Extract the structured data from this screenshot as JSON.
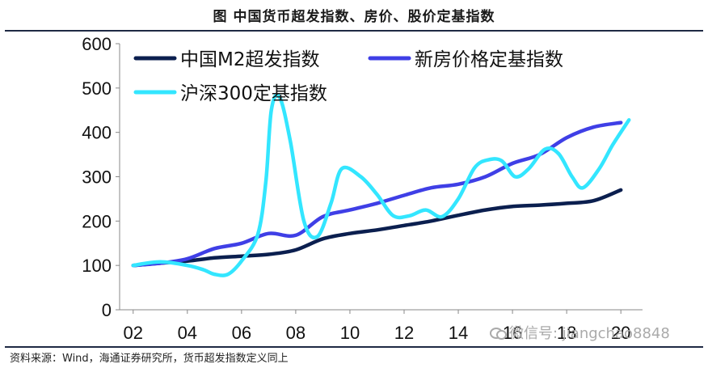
{
  "page": {
    "title": "图  中国货币超发指数、房价、股价定基指数",
    "source": "资料来源：Wind，海通证券研究所，货币超发指数定义同上",
    "watermark": "微信号: jiangchao8848"
  },
  "chart_data": {
    "type": "line",
    "x": [
      2002,
      2003,
      2004,
      2005,
      2006,
      2007,
      2008,
      2009,
      2010,
      2011,
      2012,
      2013,
      2014,
      2015,
      2016,
      2017,
      2018,
      2019,
      2020
    ],
    "x_tick_labels": [
      "02",
      "04",
      "06",
      "08",
      "10",
      "12",
      "14",
      "16",
      "18",
      "20"
    ],
    "x_tick_values": [
      2002,
      2004,
      2006,
      2008,
      2010,
      2012,
      2014,
      2016,
      2018,
      2020
    ],
    "ylim": [
      0,
      600
    ],
    "y_ticks": [
      0,
      100,
      200,
      300,
      400,
      500,
      600
    ],
    "grid": false,
    "legend_position": "top-left",
    "series": [
      {
        "name": "中国M2超发指数",
        "color": "#0b1f4f",
        "x": [
          2002,
          2003,
          2004,
          2005,
          2006,
          2007,
          2008,
          2009,
          2010,
          2011,
          2012,
          2013,
          2014,
          2015,
          2016,
          2017,
          2018,
          2019,
          2020
        ],
        "values": [
          100,
          105,
          110,
          117,
          121,
          125,
          135,
          160,
          172,
          180,
          190,
          200,
          213,
          225,
          233,
          236,
          240,
          246,
          270
        ]
      },
      {
        "name": "新房价格定基指数",
        "color": "#3f3fe6",
        "x": [
          2002,
          2003,
          2004,
          2005,
          2006,
          2007,
          2008,
          2009,
          2010,
          2011,
          2012,
          2013,
          2014,
          2015,
          2016,
          2017,
          2018,
          2019,
          2020
        ],
        "values": [
          100,
          105,
          115,
          138,
          150,
          172,
          168,
          210,
          225,
          240,
          258,
          275,
          283,
          300,
          330,
          350,
          388,
          412,
          422
        ]
      },
      {
        "name": "沪深300定基指数",
        "color": "#33e6ff",
        "x": [
          2002,
          2003,
          2004,
          2004.6,
          2005,
          2005.5,
          2006,
          2006.6,
          2006.9,
          2007.1,
          2007.4,
          2007.8,
          2008.3,
          2008.8,
          2009.3,
          2009.7,
          2010.4,
          2011,
          2011.6,
          2012.2,
          2012.8,
          2013.4,
          2014,
          2014.6,
          2015.1,
          2015.6,
          2016.1,
          2016.6,
          2017.2,
          2017.7,
          2018.2,
          2018.6,
          2019.2,
          2019.7,
          2020.3
        ],
        "values": [
          100,
          108,
          100,
          90,
          80,
          80,
          110,
          170,
          290,
          450,
          480,
          380,
          200,
          165,
          240,
          318,
          300,
          260,
          212,
          212,
          225,
          210,
          250,
          320,
          338,
          336,
          300,
          318,
          362,
          352,
          300,
          275,
          318,
          372,
          428
        ]
      }
    ]
  }
}
